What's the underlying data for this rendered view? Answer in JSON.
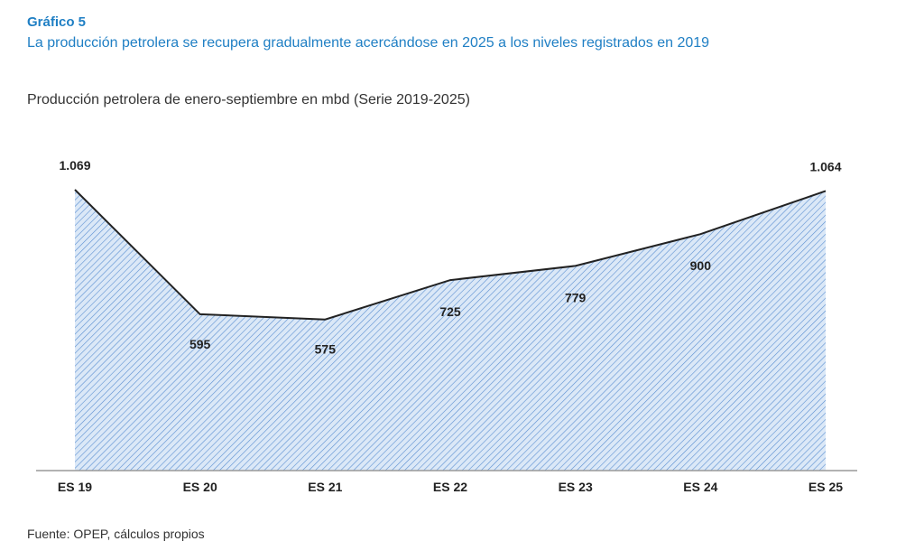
{
  "header": {
    "figure_label": "Gráfico 5",
    "subtitle": "La producción petrolera se recupera gradualmente acercándose en 2025 a los niveles registrados en 2019"
  },
  "footer": {
    "source": "Fuente: OPEP, cálculos propios"
  },
  "chart_data": {
    "type": "area",
    "title": "Producción petrolera de enero-septiembre en mbd (Serie 2019-2025)",
    "categories": [
      "ES 19",
      "ES 20",
      "ES 21",
      "ES 22",
      "ES 23",
      "ES 24",
      "ES 25"
    ],
    "values": [
      1069,
      595,
      575,
      725,
      779,
      900,
      1064
    ],
    "data_labels": [
      "1.069",
      "595",
      "575",
      "725",
      "779",
      "900",
      "1.064"
    ],
    "xlabel": "",
    "ylabel": "mbd",
    "ylim": [
      0,
      1069
    ],
    "grid": false,
    "colors": {
      "line": "#222222",
      "fill": "#dbe8f7",
      "hatch": "#5b8fd1",
      "axis": "#999999"
    }
  }
}
